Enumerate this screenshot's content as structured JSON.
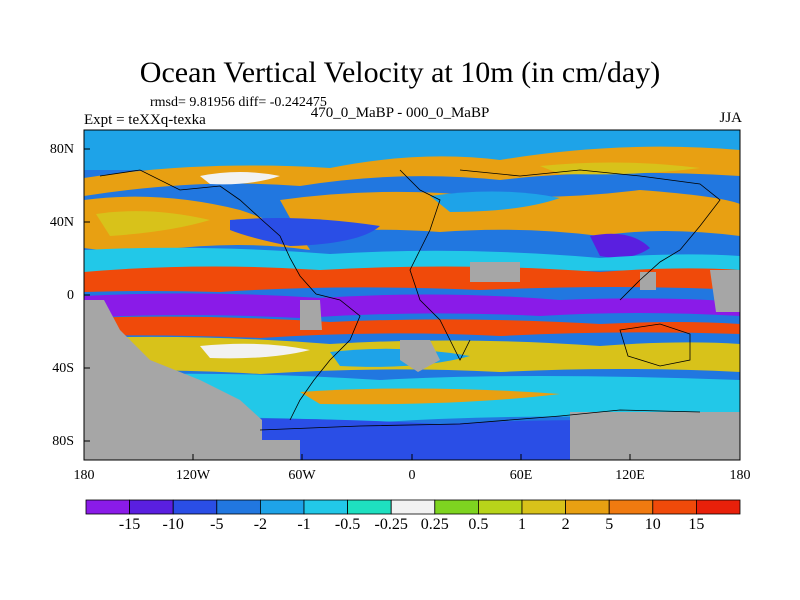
{
  "header": {
    "title": "Ocean Vertical Velocity at 10m (in cm/day)",
    "stats": "rmsd= 9.81956 diff= -0.242475",
    "experiment": "Expt = teXXq-texka",
    "difference": "470_0_MaBP - 000_0_MaBP",
    "season": "JJA"
  },
  "axes": {
    "lat_labels": [
      "80N",
      "40N",
      "0",
      "40S",
      "80S"
    ],
    "lon_labels": [
      "180",
      "120W",
      "60W",
      "0",
      "60E",
      "120E",
      "180"
    ]
  },
  "colorbar": {
    "labels": [
      "-15",
      "-10",
      "-5",
      "-2",
      "-1",
      "-0.5",
      "-0.25",
      "0.25",
      "0.5",
      "1",
      "2",
      "5",
      "10",
      "15"
    ],
    "colors": [
      "#8a1be8",
      "#5a1fe0",
      "#2a4ee6",
      "#2177e0",
      "#1ea3e8",
      "#22c8e8",
      "#1ee0c0",
      "#f2f2f2",
      "#7ed420",
      "#b8d41a",
      "#d8c21a",
      "#e8a012",
      "#f07a10",
      "#f04a0a",
      "#e8200a"
    ]
  },
  "land_color": "#a6a6a6",
  "regions": [
    {
      "name": "arctic-band",
      "color": "#1ea3e8"
    },
    {
      "name": "north-pacific",
      "color": "#e8a012"
    },
    {
      "name": "north-atlantic",
      "color": "#2a4ee6"
    },
    {
      "name": "equatorial-upwelling",
      "color": "#5a1fe0"
    },
    {
      "name": "tropical-downwelling",
      "color": "#f04a0a"
    },
    {
      "name": "southern-ocean",
      "color": "#22c8e8"
    },
    {
      "name": "south-subtropics",
      "color": "#d8c21a"
    },
    {
      "name": "panthalassa-east",
      "color": "#f07a10"
    }
  ]
}
